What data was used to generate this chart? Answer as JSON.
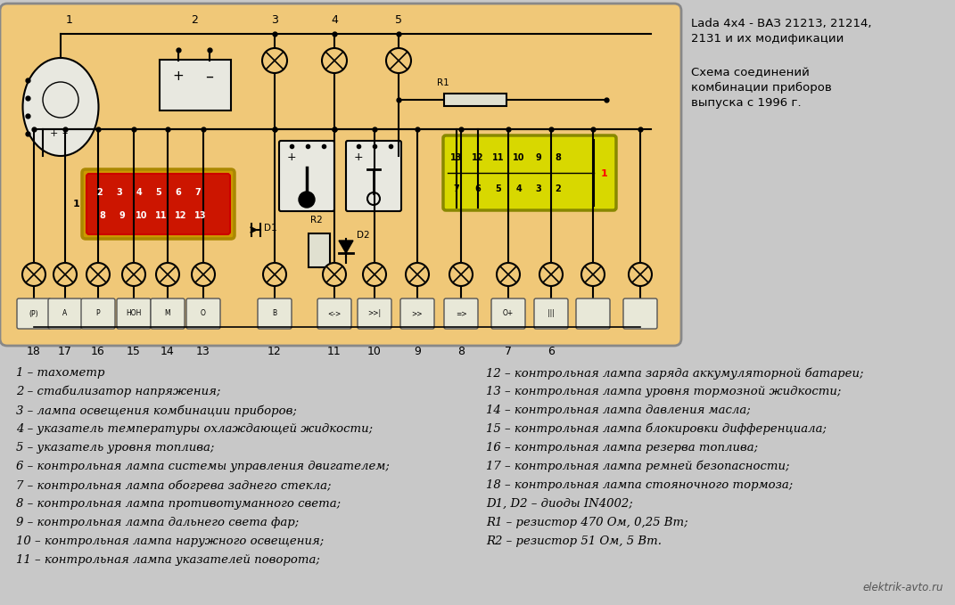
{
  "bg_color": "#c8c8c8",
  "panel_bg": "#f0c878",
  "panel_border": "#888888",
  "white_bg": "#ffffff",
  "title_line1": "Lada 4x4 - ВАЗ 21213, 21214,",
  "title_line2": "2131 и их модификации",
  "subtitle_line1": "Схема соединений",
  "subtitle_line2": "комбинации приборов",
  "subtitle_line3": "выпуска с 1996 г.",
  "watermark": "elektrik-avto.ru",
  "left_col": [
    "1 – тахометр",
    "2 – стабилизатор напряжения;",
    "3 – лампа освещения комбинации приборов;",
    "4 – указатель температуры охлаждающей жидкости;",
    "5 – указатель уровня топлива;",
    "6 – контрольная лампа системы управления двигателем;",
    "7 – контрольная лампа обогрева заднего стекла;",
    "8 – контрольная лампа противотуманного света;",
    "9 – контрольная лампа дальнего света фар;",
    "10 – контрольная лампа наружного освещения;",
    "11 – контрольная лампа указателей поворота;"
  ],
  "right_col": [
    "12 – контрольная лампа заряда аккумуляторной батареи;",
    "13 – контрольная лампа уровня тормозной жидкости;",
    "14 – контрольная лампа давления масла;",
    "15 – контрольная лампа блокировки дифференциала;",
    "16 – контрольная лампа резерва топлива;",
    "17 – контрольная лампа ремней безопасности;",
    "18 – контрольная лампа стояночного тормоза;",
    "D1, D2 – диоды IN4002;",
    "R1 – резистор 470 Ом, 0,25 Вт;",
    "R2 – резистор 51 Ом, 5 Вт."
  ],
  "lw": 1.5,
  "lamp_r": 13
}
